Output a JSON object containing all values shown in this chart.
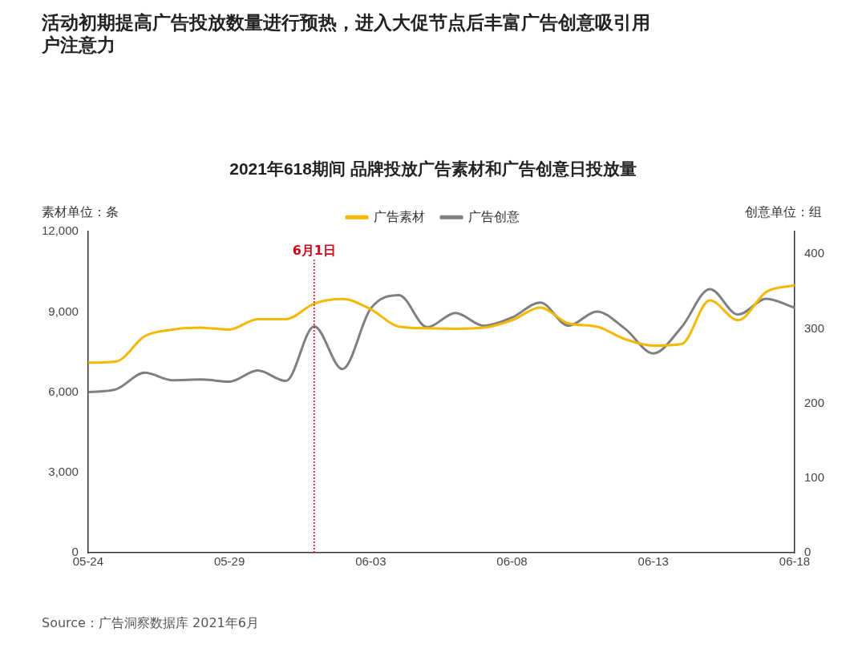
{
  "chart_data": {
    "type": "line",
    "title": "活动初期提高广告投放数量进行预热，进入大促节点后丰富广告创意吸引用户注意力",
    "subtitle": "2021年618期间 品牌投放广告素材和广告创意日投放量",
    "ylabel": "素材单位：条",
    "y2label": "创意单位：组",
    "x": [
      "--05-24",
      "--05-25",
      "--05-26",
      "--05-27",
      "--05-28",
      "--05-29",
      "--05-30",
      "--05-31",
      "--06-01",
      "--06-02",
      "--06-03",
      "--06-04",
      "--06-05",
      "--06-06",
      "--06-07",
      "--06-08",
      "--06-09",
      "--06-10",
      "--06-11",
      "--06-12",
      "--06-13",
      "--06-14",
      "--06-15",
      "--06-16",
      "--06-17",
      "--06-18"
    ],
    "xlim": [
      "--05-24",
      "--06-18"
    ],
    "xticks": [
      {
        "value": "--05-24",
        "label": "05-24"
      },
      {
        "value": "--05-29",
        "label": "05-29"
      },
      {
        "value": "--06-03",
        "label": "06-03"
      },
      {
        "value": "--06-08",
        "label": "06-08"
      },
      {
        "value": "--06-13",
        "label": "06-13"
      },
      {
        "value": "--06-18",
        "label": "06-18"
      }
    ],
    "ylim": [
      0,
      12000
    ],
    "yticks": [
      {
        "value": 0,
        "label": "0"
      },
      {
        "value": 3000,
        "label": "3,000"
      },
      {
        "value": 6000,
        "label": "6,000"
      },
      {
        "value": 9000,
        "label": "9,000"
      },
      {
        "value": 12000,
        "label": "12,000"
      }
    ],
    "y2lim": [
      0,
      430
    ],
    "y2ticks": [
      0,
      100,
      200,
      300,
      400
    ],
    "series": [
      {
        "name": "广告素材",
        "color": "#f5b800",
        "values": [
          7100,
          7150,
          8090,
          8340,
          8410,
          8340,
          8730,
          8730,
          9310,
          9480,
          9100,
          8450,
          8390,
          8370,
          8410,
          8690,
          9160,
          8570,
          8450,
          7980,
          7740,
          7800,
          9430,
          8690,
          9750,
          9990
        ]
      },
      {
        "name": "广告创意",
        "color": "#7f7f7f",
        "axis": "y2",
        "values": [
          215,
          219,
          241,
          231,
          232,
          229,
          244,
          230,
          303,
          246,
          327,
          345,
          302,
          321,
          304,
          315,
          335,
          304,
          323,
          300,
          267,
          302,
          353,
          319,
          340,
          328
        ]
      }
    ],
    "ref_lines": [
      {
        "axis": "x",
        "value": "--06-01",
        "label": "6月1日",
        "color": "#d0021b",
        "line_style": "dotted"
      }
    ],
    "grid": false,
    "legend": "top",
    "annotations": [
      "Source：广告洞察数据库 2021年6月"
    ]
  }
}
